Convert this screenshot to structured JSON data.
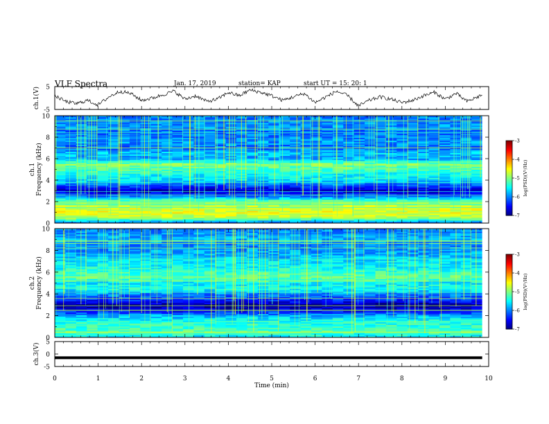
{
  "header": {
    "title": "VLF Spectra",
    "date": "Jan. 17, 2019",
    "station": "station= KAP",
    "start": "start  UT =   15: 20: 1"
  },
  "colors": {
    "frame": "#000000",
    "colormap": [
      "#00007f",
      "#0000ff",
      "#0080ff",
      "#00ffff",
      "#80ff80",
      "#ffff00",
      "#ff8000",
      "#ff0000",
      "#7f0000"
    ]
  },
  "chart_data": [
    {
      "type": "line",
      "panel": "ch1",
      "ylabel": "ch.1(V)",
      "ylim": [
        -5,
        5
      ],
      "yticks": [
        5,
        -5
      ],
      "xlim": [
        0,
        10
      ],
      "x_min": [
        0,
        0.25,
        0.5,
        0.75,
        1.0,
        1.25,
        1.5,
        1.75,
        2.0,
        2.25,
        2.5,
        2.75,
        3.0,
        3.25,
        3.5,
        3.75,
        4.0,
        4.25,
        4.5,
        4.75,
        5.0,
        5.25,
        5.5,
        5.75,
        6.0,
        6.25,
        6.5,
        6.75,
        7.0,
        7.25,
        7.5,
        7.75,
        8.0,
        8.25,
        8.5,
        8.75,
        9.0,
        9.25,
        9.5,
        9.75,
        9.85
      ],
      "y_v": [
        1.0,
        -1.5,
        -2.5,
        -1.0,
        -3.0,
        0.5,
        3.0,
        2.0,
        -1.0,
        0.0,
        1.5,
        3.0,
        -0.5,
        1.0,
        -1.5,
        -0.5,
        2.5,
        1.0,
        3.5,
        2.5,
        1.0,
        -1.0,
        0.5,
        2.0,
        -2.0,
        0.5,
        3.0,
        1.0,
        -3.5,
        -1.0,
        0.5,
        -0.5,
        -2.0,
        -1.0,
        1.0,
        2.5,
        -0.5,
        2.0,
        -1.5,
        0.5,
        1.5
      ]
    },
    {
      "type": "heatmap",
      "panel": "ch2_spectrogram",
      "ylabel": "ch.1\nFrequency  (kHz)",
      "ylim": [
        0,
        10
      ],
      "yticks": [
        0,
        2,
        4,
        6,
        8,
        10
      ],
      "xlim": [
        0,
        10
      ],
      "colorbar": {
        "label": "log(PSD)(V²/Hz)",
        "range": [
          -7,
          -3
        ],
        "ticks": [
          -3,
          -4,
          -5,
          -6,
          -7
        ]
      },
      "band_freq_khz": [
        0.0,
        0.5,
        1.0,
        1.5,
        2.0,
        2.5,
        3.0,
        3.5,
        4.0,
        4.5,
        5.0,
        5.5,
        6.0,
        6.5,
        7.0,
        7.5,
        8.0,
        8.5,
        9.0,
        9.5,
        10.0
      ],
      "band_logpsd": [
        -6.2,
        -4.8,
        -4.6,
        -4.7,
        -5.0,
        -6.0,
        -6.8,
        -6.2,
        -5.6,
        -5.5,
        -5.2,
        -5.0,
        -5.9,
        -5.7,
        -6.1,
        -5.9,
        -6.0,
        -6.1,
        -5.9,
        -6.0,
        -6.0
      ]
    },
    {
      "type": "heatmap",
      "panel": "ch2_spectrogram",
      "ylabel": "ch.2\nFrequency  (kHz)",
      "ylim": [
        0,
        10
      ],
      "yticks": [
        0,
        2,
        4,
        6,
        8,
        10
      ],
      "xlim": [
        0,
        10
      ],
      "colorbar": {
        "label": "log(PSD)(V²/Hz)",
        "range": [
          -7,
          -3
        ],
        "ticks": [
          -3,
          -4,
          -5,
          -6,
          -7
        ]
      },
      "band_freq_khz": [
        0.0,
        0.5,
        1.0,
        1.5,
        2.0,
        2.5,
        3.0,
        3.5,
        4.0,
        4.5,
        5.0,
        5.5,
        6.0,
        6.5,
        7.0,
        7.5,
        8.0,
        8.5,
        9.0,
        9.5,
        10.0
      ],
      "band_logpsd": [
        -5.6,
        -5.2,
        -5.3,
        -5.4,
        -5.8,
        -6.6,
        -6.9,
        -6.3,
        -6.0,
        -5.4,
        -5.6,
        -5.1,
        -5.3,
        -5.5,
        -5.6,
        -5.8,
        -5.9,
        -6.0,
        -5.8,
        -5.9,
        -6.0
      ]
    },
    {
      "type": "line",
      "panel": "ch3",
      "ylabel": "ch.3(V)",
      "ylim": [
        -5,
        5
      ],
      "yticks": [
        5,
        0,
        -5
      ],
      "xlim": [
        0,
        10
      ],
      "xlabel": "Time  (min)",
      "xticks": [
        0,
        1,
        2,
        3,
        4,
        5,
        6,
        7,
        8,
        9,
        10
      ],
      "x_min": [
        0,
        9.85
      ],
      "y_v": [
        -1.5,
        -1.5
      ]
    }
  ]
}
